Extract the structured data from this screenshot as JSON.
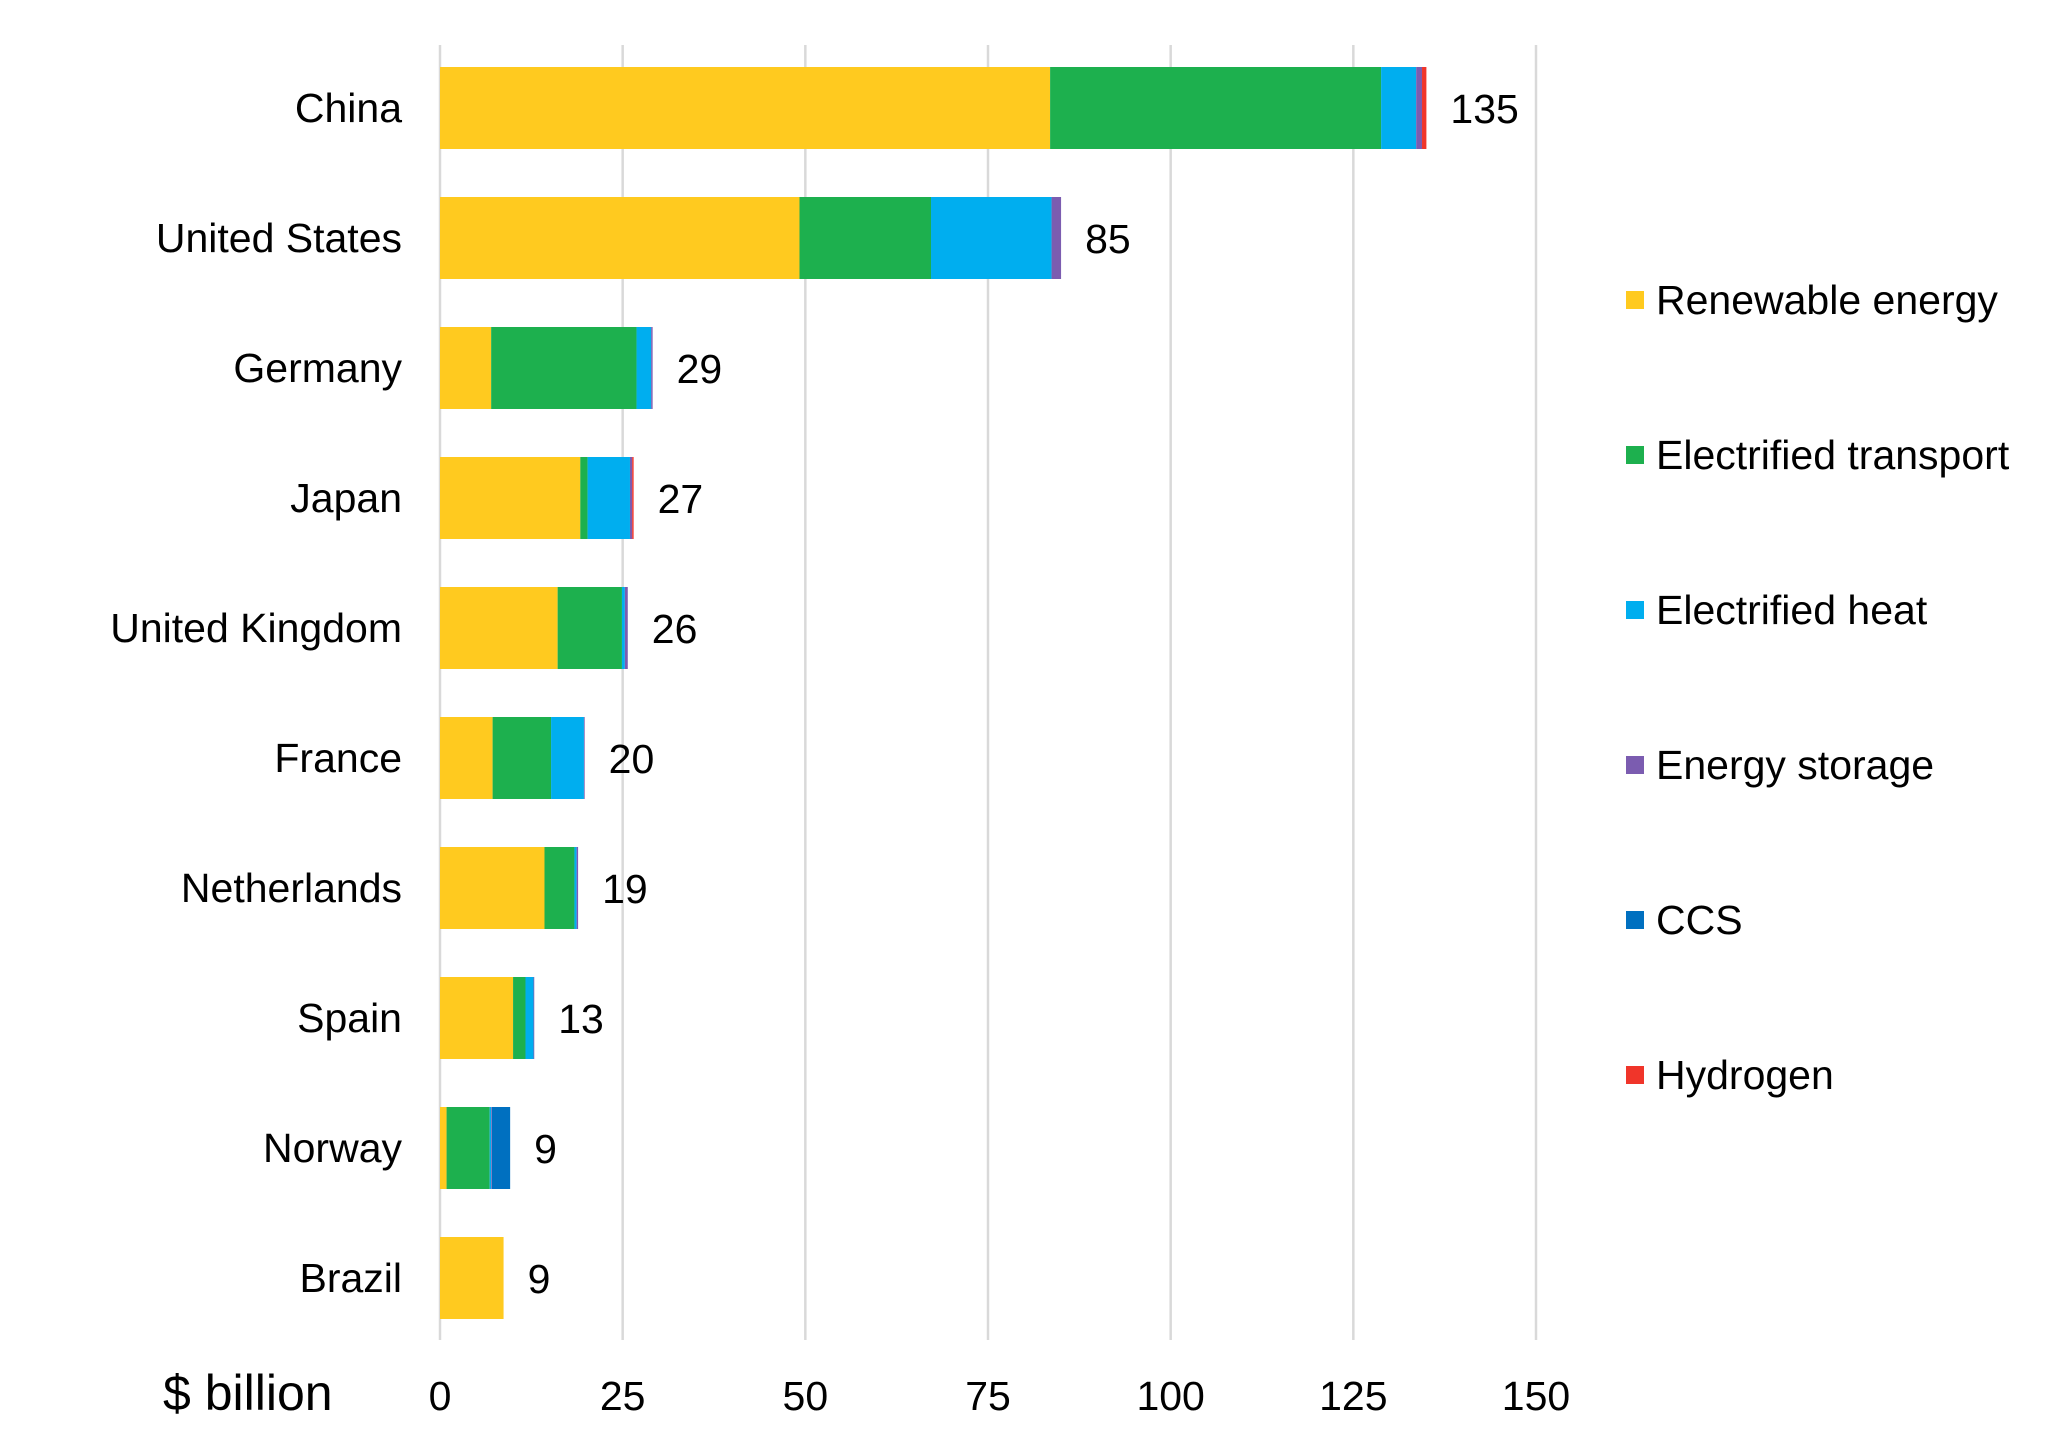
{
  "chart_data": {
    "type": "bar",
    "orientation": "horizontal",
    "stacked": true,
    "xlabel": "$ billion",
    "xlim": [
      0,
      150
    ],
    "xticks": [
      0,
      25,
      50,
      75,
      100,
      125,
      150
    ],
    "grid": "vertical",
    "legend_position": "right",
    "categories": [
      "China",
      "United States",
      "Germany",
      "Japan",
      "United Kingdom",
      "France",
      "Netherlands",
      "Spain",
      "Norway",
      "Brazil"
    ],
    "totals": [
      135,
      85,
      29,
      27,
      26,
      20,
      19,
      13,
      9,
      9
    ],
    "series": [
      {
        "name": "Renewable energy",
        "color": "#FFCA1F",
        "values": [
          83.5,
          49.2,
          7.0,
          19.2,
          16.1,
          7.2,
          14.3,
          10.0,
          0.9,
          8.7
        ]
      },
      {
        "name": "Electrified transport",
        "color": "#1DB04E",
        "values": [
          45.3,
          18.0,
          19.9,
          1.0,
          8.8,
          8.0,
          4.1,
          1.7,
          5.9,
          0.0
        ]
      },
      {
        "name": "Electrified heat",
        "color": "#00AEEF",
        "values": [
          4.8,
          16.5,
          2.0,
          5.8,
          0.4,
          4.5,
          0.3,
          1.1,
          0.2,
          0.0
        ]
      },
      {
        "name": "Energy storage",
        "color": "#7B5CB0",
        "values": [
          0.8,
          1.3,
          0.2,
          0.3,
          0.4,
          0.1,
          0.2,
          0.1,
          0.1,
          0.0
        ]
      },
      {
        "name": "CCS",
        "color": "#0070C0",
        "values": [
          0.0,
          0.0,
          0.0,
          0.0,
          0.0,
          0.0,
          0.0,
          0.0,
          2.5,
          0.0
        ]
      },
      {
        "name": "Hydrogen",
        "color": "#F0352A",
        "values": [
          0.6,
          0.0,
          0.0,
          0.2,
          0.0,
          0.0,
          0.0,
          0.0,
          0.0,
          0.0
        ]
      }
    ]
  }
}
